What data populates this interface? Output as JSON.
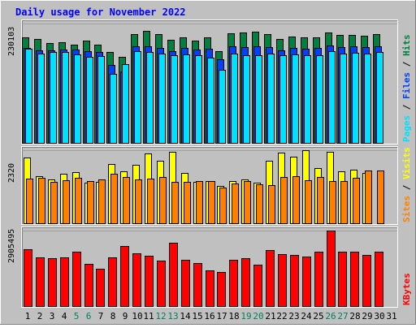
{
  "chart_data": {
    "type": "bar",
    "title": "Daily usage for November 2022",
    "colors": {
      "hits": "#008040",
      "files": "#0040ff",
      "pages": "#00e0ff",
      "visits": "#ffff00",
      "sites": "#ff8000",
      "kbytes": "#ff0000",
      "title": "#0000ff",
      "weekend_label": "#00805c",
      "background": "#c0c0c0"
    },
    "days": [
      "1",
      "2",
      "3",
      "4",
      "5",
      "6",
      "7",
      "8",
      "9",
      "10",
      "11",
      "12",
      "13",
      "14",
      "15",
      "16",
      "17",
      "18",
      "19",
      "20",
      "21",
      "22",
      "23",
      "24",
      "25",
      "26",
      "27",
      "28",
      "29",
      "30",
      "31"
    ],
    "weekend_days": [
      "5",
      "6",
      "12",
      "13",
      "19",
      "20",
      "26",
      "27"
    ],
    "panels": [
      {
        "name": "hits_files_pages",
        "ymax_label": "230103",
        "ymax": 230103,
        "legend": [
          {
            "text": "Hits",
            "color": "#008040"
          },
          {
            "text": "Files",
            "color": "#0040ff"
          },
          {
            "text": "Pages",
            "color": "#00e0ff"
          }
        ],
        "series": [
          {
            "name": "Hits",
            "values": [
              204000,
              200000,
              193000,
              194000,
              190000,
              197000,
              189000,
              175000,
              166000,
              210000,
              216000,
              210000,
              199000,
              203000,
              198000,
              203000,
              178000,
              212000,
              213000,
              215000,
              210000,
              201000,
              205000,
              204000,
              204000,
              213000,
              208000,
              209000,
              207000,
              210000,
              0
            ]
          },
          {
            "name": "Files",
            "values": [
              184000,
              179000,
              179000,
              180000,
              180000,
              177000,
              175000,
              151000,
              139000,
              187000,
              187000,
              184000,
              178000,
              184000,
              180000,
              182000,
              161000,
              186000,
              185000,
              187000,
              185000,
              179000,
              184000,
              182000,
              183000,
              188000,
              185000,
              186000,
              185000,
              187000,
              0
            ]
          },
          {
            "name": "Pages",
            "values": [
              182000,
              173000,
              175000,
              176000,
              171000,
              166000,
              168000,
              134000,
              152000,
              178000,
              175000,
              172000,
              170000,
              171000,
              169000,
              165000,
              142000,
              172000,
              169000,
              170000,
              173000,
              169000,
              171000,
              170000,
              169000,
              178000,
              172000,
              174000,
              172000,
              175000,
              0
            ]
          }
        ]
      },
      {
        "name": "visits_sites",
        "ymax_label": "2320",
        "ymax": 2320,
        "legend": [
          {
            "text": "Visits",
            "color": "#ffff00"
          },
          {
            "text": "Sites",
            "color": "#ff8000"
          }
        ],
        "series": [
          {
            "name": "Visits",
            "values": [
              2100,
              1500,
              1390,
              1570,
              1640,
              1300,
              1320,
              1890,
              1660,
              1870,
              2210,
              1990,
              2280,
              1610,
              1330,
              1340,
              1190,
              1340,
              1410,
              1290,
              2000,
              2240,
              2110,
              2320,
              1750,
              2280,
              1650,
              1710,
              1600,
              0,
              0
            ]
          },
          {
            "name": "Sites",
            "values": [
              1430,
              1460,
              1330,
              1370,
              1450,
              1360,
              1390,
              1590,
              1490,
              1400,
              1440,
              1480,
              1330,
              1330,
              1360,
              1350,
              1140,
              1280,
              1350,
              1250,
              1230,
              1480,
              1510,
              1380,
              1470,
              1340,
              1360,
              1450,
              1690,
              1690,
              0
            ]
          }
        ]
      },
      {
        "name": "kbytes",
        "ymax_label": "2905495",
        "ymax": 2905495,
        "legend": [
          {
            "text": "KBytes",
            "color": "#ff0000"
          }
        ],
        "series": [
          {
            "name": "KBytes",
            "values": [
              2180000,
              1880000,
              1840000,
              1900000,
              2100000,
              1640000,
              1460000,
              1880000,
              2330000,
              2030000,
              1950000,
              1750000,
              2450000,
              1780000,
              1660000,
              1380000,
              1340000,
              1790000,
              1860000,
              1610000,
              2170000,
              2010000,
              1990000,
              1930000,
              2110000,
              2905495,
              2110000,
              2090000,
              1980000,
              2100000,
              0
            ]
          }
        ]
      }
    ]
  }
}
